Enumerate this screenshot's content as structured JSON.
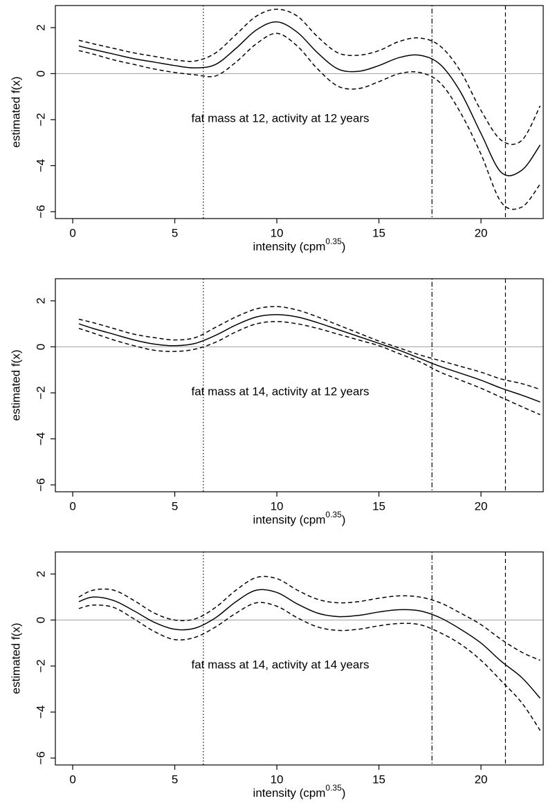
{
  "chart_data": [
    {
      "type": "line",
      "annotation": "fat mass at 12, activity at 12 years",
      "xlabel": "intensity (cpm",
      "xlabel_sup": "0.35",
      "xlabel_end": ")",
      "ylabel": "estimated f(x)",
      "x": [
        0.3,
        1,
        2,
        3,
        4,
        5,
        6,
        7,
        8,
        9,
        10,
        11,
        12,
        13,
        14,
        15,
        16,
        17,
        18,
        19,
        20,
        21,
        22,
        22.9
      ],
      "series": [
        {
          "color": "#000000",
          "line_style": "solid",
          "values": [
            1.2,
            1.05,
            0.85,
            0.65,
            0.5,
            0.35,
            0.25,
            0.4,
            1.1,
            1.9,
            2.25,
            1.8,
            0.9,
            0.2,
            0.1,
            0.35,
            0.7,
            0.8,
            0.4,
            -0.8,
            -2.6,
            -4.3,
            -4.2,
            -3.1
          ]
        },
        {
          "color": "#000000",
          "line_style": "dashed",
          "values": [
            1.45,
            1.3,
            1.1,
            0.9,
            0.75,
            0.6,
            0.55,
            0.9,
            1.7,
            2.5,
            2.8,
            2.5,
            1.6,
            0.9,
            0.8,
            1.0,
            1.4,
            1.55,
            1.2,
            0.1,
            -1.6,
            -2.9,
            -2.9,
            -1.4
          ]
        },
        {
          "color": "#000000",
          "line_style": "dashed",
          "values": [
            1.0,
            0.85,
            0.6,
            0.4,
            0.2,
            0.05,
            -0.05,
            -0.1,
            0.5,
            1.3,
            1.75,
            1.2,
            0.2,
            -0.55,
            -0.65,
            -0.35,
            0,
            0.05,
            -0.4,
            -1.7,
            -3.5,
            -5.6,
            -5.8,
            -4.8
          ]
        }
      ],
      "hline": {
        "value": 0,
        "color": "#aaaaaa"
      },
      "vlines": [
        {
          "value": 6.4,
          "line_style": "dotted"
        },
        {
          "value": 17.6,
          "line_style": "dotdash"
        },
        {
          "value": 21.2,
          "line_style": "dashed"
        }
      ],
      "xlim": [
        -0.85,
        23.05
      ],
      "ylim": [
        -6.3,
        2.96
      ],
      "xticks": [
        0,
        5,
        10,
        15,
        20
      ],
      "yticks": [
        {
          "value": -6,
          "label": "−6"
        },
        {
          "value": -4,
          "label": "−4"
        },
        {
          "value": -2,
          "label": "−2"
        },
        0,
        2
      ]
    },
    {
      "type": "line",
      "annotation": "fat mass at 14, activity at 12 years",
      "xlabel": "intensity (cpm",
      "xlabel_sup": "0.35",
      "xlabel_end": ")",
      "ylabel": "estimated f(x)",
      "x": [
        0.3,
        1,
        2,
        3,
        4,
        5,
        6,
        7,
        8,
        9,
        10,
        11,
        12,
        13,
        14,
        15,
        16,
        17,
        18,
        19,
        20,
        21,
        22,
        22.9
      ],
      "series": [
        {
          "color": "#000000",
          "line_style": "solid",
          "values": [
            1.0,
            0.8,
            0.55,
            0.3,
            0.12,
            0.05,
            0.15,
            0.5,
            0.95,
            1.3,
            1.4,
            1.3,
            1.05,
            0.75,
            0.45,
            0.15,
            -0.15,
            -0.5,
            -0.85,
            -1.15,
            -1.45,
            -1.8,
            -2.1,
            -2.4
          ]
        },
        {
          "color": "#000000",
          "line_style": "dashed",
          "values": [
            1.2,
            1.05,
            0.8,
            0.55,
            0.4,
            0.3,
            0.4,
            0.85,
            1.3,
            1.65,
            1.75,
            1.6,
            1.3,
            0.95,
            0.6,
            0.25,
            -0.05,
            -0.35,
            -0.6,
            -0.85,
            -1.1,
            -1.4,
            -1.6,
            -1.85
          ]
        },
        {
          "color": "#000000",
          "line_style": "dashed",
          "values": [
            0.8,
            0.6,
            0.3,
            0.05,
            -0.15,
            -0.2,
            -0.1,
            0.2,
            0.65,
            1.0,
            1.1,
            1.0,
            0.8,
            0.55,
            0.3,
            0.05,
            -0.3,
            -0.65,
            -1.1,
            -1.45,
            -1.8,
            -2.2,
            -2.6,
            -2.95
          ]
        }
      ],
      "hline": {
        "value": 0,
        "color": "#aaaaaa"
      },
      "vlines": [
        {
          "value": 6.4,
          "line_style": "dotted"
        },
        {
          "value": 17.6,
          "line_style": "dotdash"
        },
        {
          "value": 21.2,
          "line_style": "dashed"
        }
      ],
      "xlim": [
        -0.85,
        23.05
      ],
      "ylim": [
        -6.3,
        2.96
      ],
      "xticks": [
        0,
        5,
        10,
        15,
        20
      ],
      "yticks": [
        {
          "value": -6,
          "label": "−6"
        },
        {
          "value": -4,
          "label": "−4"
        },
        {
          "value": -2,
          "label": "−2"
        },
        0,
        2
      ]
    },
    {
      "type": "line",
      "annotation": "fat mass at 14, activity at 14 years",
      "xlabel": "intensity (cpm",
      "xlabel_sup": "0.35",
      "xlabel_end": ")",
      "ylabel": "estimated f(x)",
      "x": [
        0.3,
        1,
        2,
        3,
        4,
        5,
        6,
        7,
        8,
        9,
        10,
        11,
        12,
        13,
        14,
        15,
        16,
        17,
        18,
        19,
        20,
        21,
        22,
        22.9
      ],
      "series": [
        {
          "color": "#000000",
          "line_style": "solid",
          "values": [
            0.8,
            1.0,
            0.85,
            0.4,
            -0.1,
            -0.4,
            -0.35,
            0.1,
            0.8,
            1.3,
            1.2,
            0.7,
            0.3,
            0.15,
            0.2,
            0.35,
            0.45,
            0.4,
            0.1,
            -0.4,
            -1.0,
            -1.8,
            -2.5,
            -3.4
          ]
        },
        {
          "color": "#000000",
          "line_style": "dashed",
          "values": [
            1.0,
            1.3,
            1.3,
            0.85,
            0.3,
            0.0,
            0.05,
            0.55,
            1.3,
            1.85,
            1.8,
            1.3,
            0.9,
            0.75,
            0.8,
            0.95,
            1.05,
            1.0,
            0.75,
            0.3,
            -0.2,
            -0.85,
            -1.4,
            -1.75
          ]
        },
        {
          "color": "#000000",
          "line_style": "dashed",
          "values": [
            0.5,
            0.65,
            0.55,
            0.05,
            -0.5,
            -0.85,
            -0.75,
            -0.3,
            0.3,
            0.75,
            0.6,
            0.1,
            -0.3,
            -0.45,
            -0.4,
            -0.25,
            -0.15,
            -0.2,
            -0.55,
            -1.05,
            -1.75,
            -2.65,
            -3.6,
            -4.8
          ]
        }
      ],
      "hline": {
        "value": 0,
        "color": "#aaaaaa"
      },
      "vlines": [
        {
          "value": 6.4,
          "line_style": "dotted"
        },
        {
          "value": 17.6,
          "line_style": "dotdash"
        },
        {
          "value": 21.2,
          "line_style": "dashed"
        }
      ],
      "xlim": [
        -0.85,
        23.05
      ],
      "ylim": [
        -6.3,
        2.96
      ],
      "xticks": [
        0,
        5,
        10,
        15,
        20
      ],
      "yticks": [
        {
          "value": -6,
          "label": "−6"
        },
        {
          "value": -4,
          "label": "−4"
        },
        {
          "value": -2,
          "label": "−2"
        },
        0,
        2
      ]
    }
  ]
}
